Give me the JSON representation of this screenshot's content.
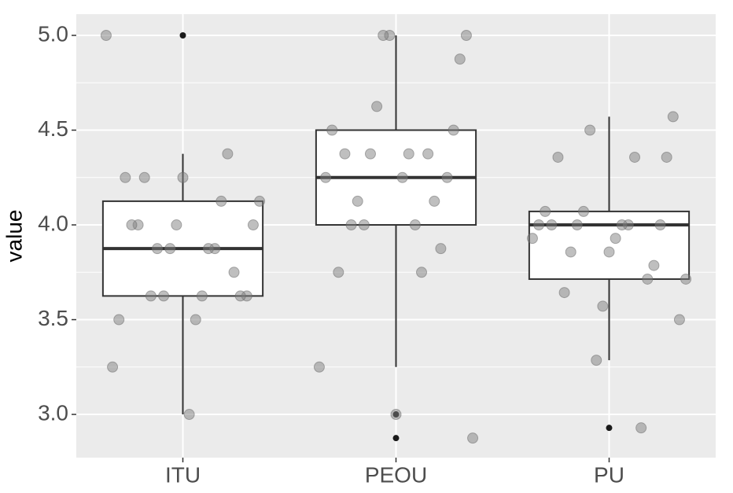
{
  "chart_data": {
    "type": "box",
    "y_label": "value",
    "categories": [
      "ITU",
      "PEOU",
      "PU"
    ],
    "boxes": [
      {
        "whisker_low": 3.0,
        "q1": 3.625,
        "median": 3.875,
        "q3": 4.125,
        "whisker_high": 4.375,
        "outliers": [
          5.0
        ]
      },
      {
        "whisker_low": 3.25,
        "q1": 4.0,
        "median": 4.25,
        "q3": 4.5,
        "whisker_high": 5.0,
        "outliers": [
          3.0,
          2.875
        ]
      },
      {
        "whisker_low": 3.286,
        "q1": 3.714,
        "median": 4.0,
        "q3": 4.071,
        "whisker_high": 4.571,
        "outliers": [
          2.929
        ]
      }
    ],
    "points": [
      [
        5.0,
        4.25,
        4.125,
        4.0,
        4.0,
        3.875,
        3.625,
        3.625,
        3.625,
        3.875,
        3.75,
        3.625,
        4.375,
        4.25,
        4.125,
        4.0,
        3.875,
        4.0,
        3.875,
        4.25,
        3.625,
        3.5,
        3.5,
        3.25,
        3.0
      ],
      [
        5.0,
        5.0,
        5.0,
        4.875,
        4.625,
        4.5,
        4.375,
        4.25,
        4.0,
        3.875,
        4.125,
        4.125,
        4.0,
        4.375,
        4.375,
        3.75,
        3.75,
        4.0,
        4.5,
        4.375,
        4.25,
        4.25,
        3.25,
        3.0,
        2.875
      ],
      [
        4.571,
        4.5,
        4.357,
        4.071,
        4.0,
        4.0,
        3.786,
        3.857,
        3.714,
        3.643,
        2.929,
        4.357,
        4.357,
        4.0,
        4.0,
        4.071,
        4.0,
        4.0,
        3.929,
        3.929,
        3.857,
        3.714,
        3.571,
        3.5,
        3.286
      ]
    ],
    "box_color": "#ffffff",
    "line_color": "#333333",
    "point_color": "#7f7f7f",
    "outlier_color": "#1a1a1a",
    "ylim": [
      2.772,
      5.112
    ],
    "yticks": [
      {
        "value": 3.0,
        "label": "3.0"
      },
      3.5,
      {
        "value": 4.0,
        "label": "4.0"
      },
      4.5,
      {
        "value": 5.0,
        "label": "5.0"
      }
    ],
    "minor_yticks": [
      3.25,
      3.75,
      4.25,
      4.75
    ],
    "grid": true
  }
}
